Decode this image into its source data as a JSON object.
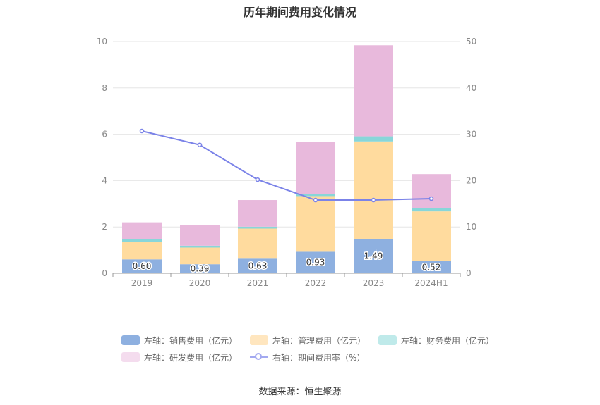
{
  "title": "历年期间费用变化情况",
  "source": "数据来源：恒生聚源",
  "chart_data": {
    "type": "bar",
    "stacked": true,
    "categories": [
      "2019",
      "2020",
      "2021",
      "2022",
      "2023",
      "2024H1"
    ],
    "y_left": {
      "ticks": [
        "0",
        "2",
        "4",
        "6",
        "8",
        "10"
      ],
      "ylim": [
        0,
        10
      ]
    },
    "y_right": {
      "ticks": [
        "0",
        "10",
        "20",
        "30",
        "40",
        "50"
      ],
      "ylim": [
        0,
        50
      ]
    },
    "grid": true,
    "legend_placement": "bottom",
    "series": [
      {
        "name": "左轴：销售费用（亿元）",
        "axis": "left",
        "kind": "bar",
        "color": "#8eb0e0",
        "values": [
          0.6,
          0.39,
          0.63,
          0.93,
          1.49,
          0.52
        ],
        "labels": [
          "0.60",
          "0.39",
          "0.63",
          "0.93",
          "1.49",
          "0.52"
        ]
      },
      {
        "name": "左轴：管理费用（亿元）",
        "axis": "left",
        "kind": "bar",
        "color": "#ffdb9e",
        "values": [
          0.75,
          0.72,
          1.3,
          2.4,
          4.2,
          2.15
        ]
      },
      {
        "name": "左轴：财务费用（亿元）",
        "axis": "left",
        "kind": "bar",
        "color": "#88d6d9",
        "values": [
          0.13,
          0.08,
          0.08,
          0.1,
          0.22,
          0.14
        ]
      },
      {
        "name": "左轴：研发费用（亿元）",
        "axis": "left",
        "kind": "bar",
        "color": "#e8b9dc",
        "values": [
          0.72,
          0.88,
          1.15,
          2.25,
          3.93,
          1.47
        ]
      },
      {
        "name": "右轴：期间费用率（%）",
        "axis": "right",
        "kind": "line",
        "color": "#7b83e8",
        "values": [
          30.7,
          27.7,
          20.2,
          15.8,
          15.8,
          16.1
        ]
      }
    ]
  },
  "legend": {
    "rows": [
      [
        {
          "label": "左轴：销售费用（亿元）",
          "color": "#8eb0e0",
          "kind": "bar"
        },
        {
          "label": "左轴：管理费用（亿元）",
          "color": "#ffe6bf",
          "kind": "bar"
        },
        {
          "label": "左轴：财务费用（亿元）",
          "color": "#bfeaea",
          "kind": "bar"
        }
      ],
      [
        {
          "label": "左轴：研发费用（亿元）",
          "color": "#f4dcee",
          "kind": "bar"
        },
        {
          "label": "右轴：期间费用率（%）",
          "color": "#a3a9f0",
          "kind": "line"
        }
      ]
    ]
  }
}
